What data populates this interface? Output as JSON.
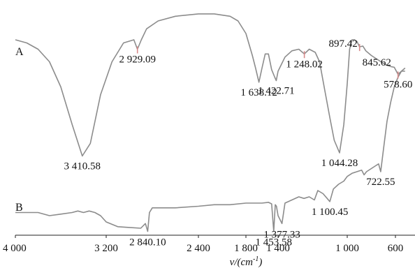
{
  "chart_data": {
    "type": "line",
    "xlim": [
      4000,
      500
    ],
    "x_ticks": [
      "4 000",
      "3 200",
      "2 400",
      "1 800",
      "1 400",
      "1 000",
      "600"
    ],
    "x_tick_values": [
      4000,
      3200,
      2400,
      1800,
      1400,
      1000,
      600
    ],
    "xlabel_main": "ν/(cm",
    "xlabel_sup": "-1",
    "xlabel_end": ")",
    "grid": false,
    "legend": "none",
    "series": [
      {
        "name": "A",
        "color": "#8c8c8c",
        "points": [
          [
            4000,
            0.8
          ],
          [
            3900,
            0.78
          ],
          [
            3800,
            0.74
          ],
          [
            3700,
            0.66
          ],
          [
            3600,
            0.5
          ],
          [
            3500,
            0.26
          ],
          [
            3410.58,
            0.06
          ],
          [
            3340,
            0.14
          ],
          [
            3250,
            0.45
          ],
          [
            3150,
            0.66
          ],
          [
            3050,
            0.78
          ],
          [
            2960,
            0.8
          ],
          [
            2929.09,
            0.74
          ],
          [
            2895,
            0.8
          ],
          [
            2850,
            0.87
          ],
          [
            2750,
            0.92
          ],
          [
            2600,
            0.95
          ],
          [
            2400,
            0.965
          ],
          [
            2200,
            0.965
          ],
          [
            2000,
            0.95
          ],
          [
            1900,
            0.92
          ],
          [
            1800,
            0.84
          ],
          [
            1720,
            0.7
          ],
          [
            1680,
            0.62
          ],
          [
            1638.12,
            0.53
          ],
          [
            1600,
            0.62
          ],
          [
            1560,
            0.71
          ],
          [
            1520,
            0.71
          ],
          [
            1480,
            0.61
          ],
          [
            1440,
            0.56
          ],
          [
            1422.71,
            0.54
          ],
          [
            1400,
            0.6
          ],
          [
            1360,
            0.69
          ],
          [
            1320,
            0.73
          ],
          [
            1280,
            0.74
          ],
          [
            1248.02,
            0.71
          ],
          [
            1220,
            0.74
          ],
          [
            1185,
            0.72
          ],
          [
            1160,
            0.66
          ],
          [
            1130,
            0.48
          ],
          [
            1100,
            0.3
          ],
          [
            1075,
            0.16
          ],
          [
            1044.28,
            0.08
          ],
          [
            1020,
            0.26
          ],
          [
            1000,
            0.52
          ],
          [
            980,
            0.74
          ],
          [
            960,
            0.8
          ],
          [
            940,
            0.8
          ],
          [
            920,
            0.79
          ],
          [
            897.42,
            0.755
          ],
          [
            870,
            0.76
          ],
          [
            845.62,
            0.73
          ],
          [
            800,
            0.7
          ],
          [
            760,
            0.68
          ],
          [
            720,
            0.66
          ],
          [
            680,
            0.64
          ],
          [
            640,
            0.63
          ],
          [
            610,
            0.625
          ],
          [
            578.6,
            0.58
          ],
          [
            550,
            0.6
          ],
          [
            520,
            0.6
          ]
        ]
      },
      {
        "name": "B",
        "color": "#8c8c8c",
        "points": [
          [
            4000,
            -0.3
          ],
          [
            3900,
            -0.3
          ],
          [
            3800,
            -0.3
          ],
          [
            3700,
            -0.32
          ],
          [
            3600,
            -0.31
          ],
          [
            3500,
            -0.3
          ],
          [
            3450,
            -0.29
          ],
          [
            3400,
            -0.3
          ],
          [
            3350,
            -0.29
          ],
          [
            3300,
            -0.3
          ],
          [
            3250,
            -0.32
          ],
          [
            3200,
            -0.36
          ],
          [
            3100,
            -0.39
          ],
          [
            3000,
            -0.395
          ],
          [
            2900,
            -0.4
          ],
          [
            2860,
            -0.37
          ],
          [
            2840.1,
            -0.42
          ],
          [
            2825,
            -0.3
          ],
          [
            2800,
            -0.27
          ],
          [
            2600,
            -0.27
          ],
          [
            2400,
            -0.26
          ],
          [
            2200,
            -0.25
          ],
          [
            2000,
            -0.25
          ],
          [
            1800,
            -0.24
          ],
          [
            1700,
            -0.24
          ],
          [
            1600,
            -0.24
          ],
          [
            1520,
            -0.235
          ],
          [
            1480,
            -0.245
          ],
          [
            1453.58,
            -0.42
          ],
          [
            1435,
            -0.25
          ],
          [
            1420,
            -0.26
          ],
          [
            1400,
            -0.32
          ],
          [
            1377.33,
            -0.37
          ],
          [
            1360,
            -0.24
          ],
          [
            1320,
            -0.22
          ],
          [
            1280,
            -0.2
          ],
          [
            1250,
            -0.21
          ],
          [
            1220,
            -0.2
          ],
          [
            1190,
            -0.22
          ],
          [
            1170,
            -0.16
          ],
          [
            1140,
            -0.18
          ],
          [
            1100.45,
            -0.23
          ],
          [
            1080,
            -0.15
          ],
          [
            1050,
            -0.12
          ],
          [
            1020,
            -0.1
          ],
          [
            1000,
            -0.07
          ],
          [
            960,
            -0.05
          ],
          [
            920,
            -0.04
          ],
          [
            880,
            -0.03
          ],
          [
            860,
            -0.06
          ],
          [
            840,
            -0.04
          ],
          [
            800,
            -0.02
          ],
          [
            760,
            0.0
          ],
          [
            740,
            0.01
          ],
          [
            722.55,
            -0.04
          ],
          [
            700,
            0.1
          ],
          [
            670,
            0.28
          ],
          [
            640,
            0.4
          ],
          [
            610,
            0.5
          ],
          [
            580,
            0.56
          ],
          [
            550,
            0.6
          ],
          [
            520,
            0.62
          ]
        ]
      }
    ],
    "peak_labels": [
      {
        "series": "A",
        "text": "3 410.58",
        "x": 3410.58,
        "y": 0.06,
        "place": "below"
      },
      {
        "series": "A",
        "text": "2 929.09",
        "x": 2929.09,
        "y": 0.74,
        "place": "below"
      },
      {
        "series": "A",
        "text": "1 638.12",
        "x": 1638.12,
        "y": 0.53,
        "place": "below"
      },
      {
        "series": "A",
        "text": "1 422.71",
        "x": 1422.71,
        "y": 0.54,
        "place": "below"
      },
      {
        "series": "A",
        "text": "1 248.02",
        "x": 1248.02,
        "y": 0.71,
        "place": "below"
      },
      {
        "series": "A",
        "text": "897.42",
        "x": 897.42,
        "y": 0.755,
        "place": "left"
      },
      {
        "series": "A",
        "text": "845.62",
        "x": 845.62,
        "y": 0.73,
        "place": "below-right"
      },
      {
        "series": "A",
        "text": "578.60",
        "x": 578.6,
        "y": 0.58,
        "place": "below"
      },
      {
        "series": "A",
        "text": "1 044.28",
        "x": 1044.28,
        "y": 0.08,
        "place": "below"
      },
      {
        "series": "B",
        "text": "722.55",
        "x": 722.55,
        "y": -0.04,
        "place": "below"
      },
      {
        "series": "B",
        "text": "1 100.45",
        "x": 1100.45,
        "y": -0.23,
        "place": "below"
      },
      {
        "series": "B",
        "text": "2 840.10",
        "x": 2840.1,
        "y": -0.42,
        "place": "below"
      },
      {
        "series": "B",
        "text": "1 453.58",
        "x": 1453.58,
        "y": -0.42,
        "place": "below"
      },
      {
        "series": "B",
        "text": "1 377.33",
        "x": 1377.33,
        "y": -0.37,
        "place": "below"
      }
    ]
  }
}
